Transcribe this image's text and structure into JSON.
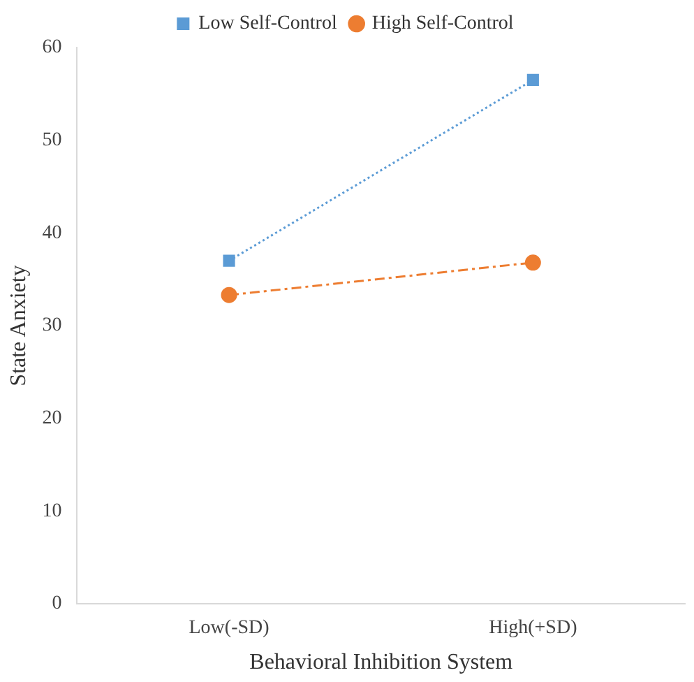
{
  "chart_data": {
    "type": "line",
    "xlabel": "Behavioral Inhibition System",
    "ylabel": "State Anxiety",
    "categories": [
      "Low(-SD)",
      "High(+SD)"
    ],
    "ylim": [
      0,
      60
    ],
    "yticks": [
      0,
      10,
      20,
      30,
      40,
      50,
      60
    ],
    "grid": false,
    "legend": "top",
    "series": [
      {
        "name": "Low Self-Control",
        "color": "#5b9bd5",
        "values": [
          37.0,
          56.5
        ],
        "marker": "square",
        "line_style": "dotted"
      },
      {
        "name": "High Self-Control",
        "color": "#ed7d31",
        "values": [
          33.3,
          36.8
        ],
        "marker": "circle",
        "line_style": "dashed"
      }
    ]
  }
}
